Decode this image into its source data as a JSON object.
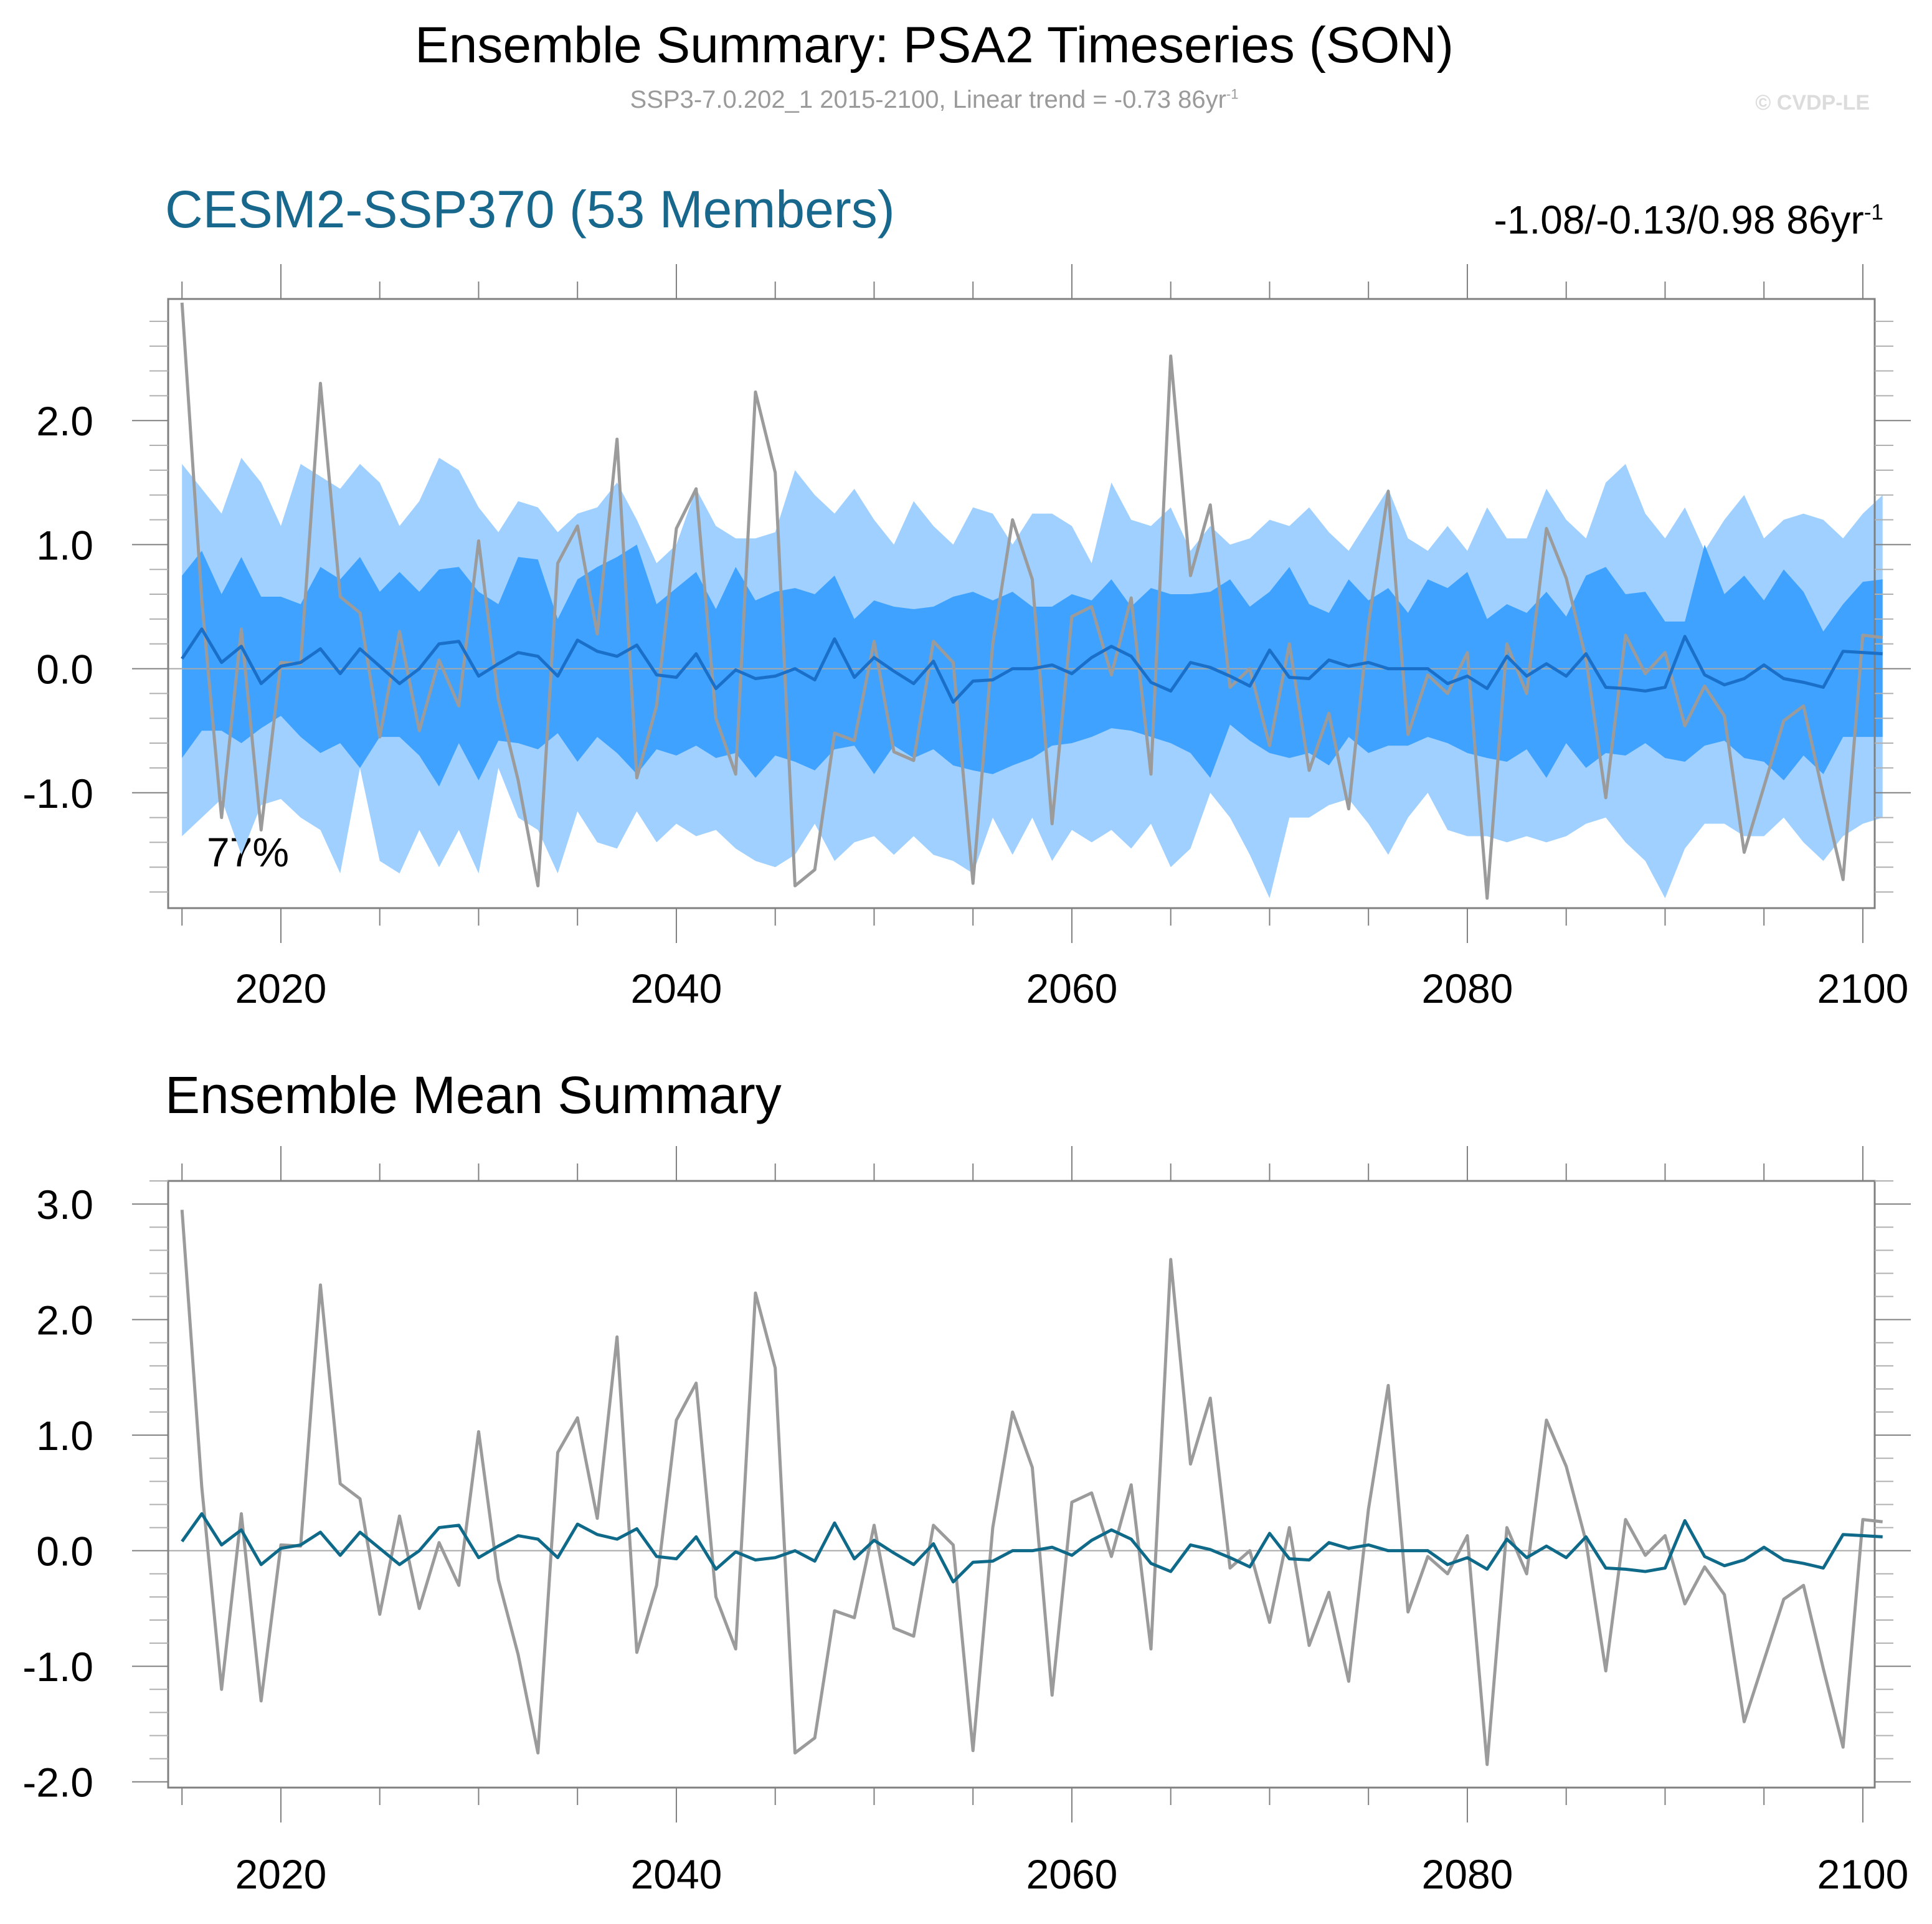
{
  "header": {
    "title": "Ensemble Summary: PSA2 Timeseries (SON)",
    "subtitle": "SSP3-7.0.202_1 2015-2100, Linear trend = -0.73 86yr",
    "subtitle_sup": "-1",
    "copyright": "© CVDP-LE"
  },
  "colors": {
    "inner_band": "#3fa2ff",
    "outer_band": "#9fd0ff",
    "ensemble_mean_top": "#1a6fc9",
    "ensemble_mean_bottom": "#0f6a8a",
    "observed": "#9b9b9b",
    "title_accent": "#17688c",
    "axis": "#808080"
  },
  "chart_data": [
    {
      "type": "area",
      "title": "CESM2-SSP370 (53 Members)",
      "trend_label": "-1.08/-0.13/0.98 86yr",
      "trend_sup": "-1",
      "annotation": "77%",
      "xlim": [
        2014.3,
        2100.6
      ],
      "ylim": [
        -1.93,
        2.98
      ],
      "x_ticks": [
        2020,
        2040,
        2060,
        2080,
        2100
      ],
      "y_ticks": [
        -1.0,
        0.0,
        1.0,
        2.0
      ],
      "y_tick_labels": [
        "-1.0",
        "0.0",
        "1.0",
        "2.0"
      ],
      "series": [
        {
          "name": "outer_band_upper",
          "values": [
            1.65,
            1.45,
            1.25,
            1.7,
            1.5,
            1.15,
            1.65,
            1.55,
            1.45,
            1.65,
            1.5,
            1.15,
            1.35,
            1.7,
            1.6,
            1.3,
            1.1,
            1.35,
            1.3,
            1.1,
            1.25,
            1.3,
            1.5,
            1.2,
            0.85,
            1.0,
            1.45,
            1.15,
            1.05,
            1.05,
            1.1,
            1.6,
            1.4,
            1.25,
            1.45,
            1.2,
            1.0,
            1.35,
            1.15,
            1.0,
            1.3,
            1.25,
            1.0,
            1.25,
            1.25,
            1.15,
            0.85,
            1.5,
            1.2,
            1.15,
            1.3,
            0.95,
            1.15,
            1.0,
            1.05,
            1.2,
            1.15,
            1.3,
            1.1,
            0.95,
            1.2,
            1.45,
            1.05,
            0.95,
            1.15,
            0.95,
            1.3,
            1.05,
            1.05,
            1.45,
            1.2,
            1.05,
            1.5,
            1.65,
            1.25,
            1.05,
            1.3,
            0.95,
            1.2,
            1.4,
            1.05,
            1.2,
            1.25,
            1.2,
            1.05,
            1.25,
            1.4
          ]
        },
        {
          "name": "inner_band_upper",
          "values": [
            0.75,
            0.95,
            0.6,
            0.9,
            0.58,
            0.58,
            0.52,
            0.82,
            0.72,
            0.9,
            0.62,
            0.78,
            0.62,
            0.8,
            0.82,
            0.62,
            0.52,
            0.9,
            0.88,
            0.4,
            0.72,
            0.82,
            0.9,
            1.0,
            0.52,
            0.65,
            0.78,
            0.48,
            0.82,
            0.55,
            0.62,
            0.65,
            0.6,
            0.75,
            0.4,
            0.55,
            0.5,
            0.48,
            0.5,
            0.58,
            0.62,
            0.55,
            0.62,
            0.5,
            0.5,
            0.6,
            0.55,
            0.72,
            0.5,
            0.65,
            0.6,
            0.6,
            0.62,
            0.72,
            0.5,
            0.62,
            0.82,
            0.52,
            0.45,
            0.72,
            0.55,
            0.65,
            0.45,
            0.72,
            0.65,
            0.78,
            0.4,
            0.52,
            0.45,
            0.62,
            0.42,
            0.75,
            0.82,
            0.6,
            0.62,
            0.38,
            0.38,
            1.0,
            0.6,
            0.75,
            0.55,
            0.8,
            0.62,
            0.3,
            0.52,
            0.7,
            0.72
          ]
        },
        {
          "name": "inner_band_lower",
          "values": [
            -0.72,
            -0.5,
            -0.5,
            -0.6,
            -0.48,
            -0.38,
            -0.55,
            -0.68,
            -0.6,
            -0.8,
            -0.55,
            -0.55,
            -0.7,
            -0.95,
            -0.6,
            -0.9,
            -0.58,
            -0.6,
            -0.65,
            -0.52,
            -0.75,
            -0.55,
            -0.68,
            -0.85,
            -0.65,
            -0.7,
            -0.62,
            -0.72,
            -0.68,
            -0.88,
            -0.7,
            -0.75,
            -0.82,
            -0.65,
            -0.62,
            -0.85,
            -0.62,
            -0.72,
            -0.65,
            -0.78,
            -0.82,
            -0.85,
            -0.78,
            -0.72,
            -0.62,
            -0.6,
            -0.55,
            -0.48,
            -0.5,
            -0.55,
            -0.6,
            -0.68,
            -0.88,
            -0.45,
            -0.58,
            -0.68,
            -0.72,
            -0.68,
            -0.78,
            -0.55,
            -0.68,
            -0.62,
            -0.62,
            -0.55,
            -0.6,
            -0.68,
            -0.72,
            -0.75,
            -0.65,
            -0.88,
            -0.6,
            -0.8,
            -0.68,
            -0.7,
            -0.6,
            -0.72,
            -0.75,
            -0.62,
            -0.58,
            -0.72,
            -0.75,
            -0.9,
            -0.7,
            -0.85,
            -0.55,
            -0.55,
            -0.55
          ]
        },
        {
          "name": "outer_band_lower",
          "values": [
            -1.35,
            -1.2,
            -1.05,
            -1.5,
            -1.1,
            -1.05,
            -1.2,
            -1.3,
            -1.65,
            -0.8,
            -1.55,
            -1.65,
            -1.3,
            -1.6,
            -1.3,
            -1.65,
            -0.8,
            -1.2,
            -1.3,
            -1.65,
            -1.15,
            -1.4,
            -1.45,
            -1.15,
            -1.4,
            -1.25,
            -1.35,
            -1.3,
            -1.45,
            -1.55,
            -1.6,
            -1.5,
            -1.25,
            -1.55,
            -1.4,
            -1.35,
            -1.5,
            -1.35,
            -1.5,
            -1.55,
            -1.65,
            -1.2,
            -1.5,
            -1.2,
            -1.55,
            -1.3,
            -1.4,
            -1.3,
            -1.45,
            -1.25,
            -1.6,
            -1.45,
            -1.0,
            -1.2,
            -1.5,
            -1.85,
            -1.2,
            -1.2,
            -1.1,
            -1.05,
            -1.25,
            -1.5,
            -1.2,
            -1.0,
            -1.3,
            -1.35,
            -1.35,
            -1.4,
            -1.35,
            -1.4,
            -1.35,
            -1.25,
            -1.2,
            -1.4,
            -1.55,
            -1.85,
            -1.45,
            -1.25,
            -1.25,
            -1.35,
            -1.35,
            -1.2,
            -1.4,
            -1.55,
            -1.35,
            -1.25,
            -1.2
          ]
        },
        {
          "name": "ensemble_mean",
          "values": [
            0.08,
            0.32,
            0.05,
            0.18,
            -0.12,
            0.02,
            0.05,
            0.16,
            -0.04,
            0.16,
            0.02,
            -0.12,
            0.0,
            0.2,
            0.22,
            -0.06,
            0.04,
            0.13,
            0.1,
            -0.06,
            0.23,
            0.14,
            0.1,
            0.19,
            -0.05,
            -0.07,
            0.12,
            -0.16,
            -0.01,
            -0.08,
            -0.06,
            0.0,
            -0.09,
            0.24,
            -0.07,
            0.09,
            -0.02,
            -0.12,
            0.06,
            -0.27,
            -0.1,
            -0.09,
            0.0,
            0.0,
            0.03,
            -0.04,
            0.09,
            0.18,
            0.1,
            -0.11,
            -0.18,
            0.05,
            0.01,
            -0.06,
            -0.14,
            0.15,
            -0.07,
            -0.08,
            0.07,
            0.02,
            0.05,
            0.0,
            0.0,
            0.0,
            -0.12,
            -0.06,
            -0.16,
            0.1,
            -0.06,
            0.04,
            -0.06,
            0.12,
            -0.15,
            -0.16,
            -0.18,
            -0.15,
            0.26,
            -0.05,
            -0.13,
            -0.08,
            0.03,
            -0.08,
            -0.11,
            -0.15,
            0.14,
            0.13,
            0.12
          ]
        },
        {
          "name": "observed",
          "values": [
            2.95,
            0.55,
            -1.2,
            0.32,
            -1.3,
            0.05,
            0.04,
            2.3,
            0.58,
            0.45,
            -0.55,
            0.3,
            -0.5,
            0.07,
            -0.3,
            1.03,
            -0.25,
            -0.9,
            -1.75,
            0.85,
            1.15,
            0.28,
            1.85,
            -0.88,
            -0.3,
            1.13,
            1.45,
            -0.4,
            -0.85,
            2.23,
            1.58,
            -1.75,
            -1.62,
            -0.52,
            -0.58,
            0.22,
            -0.67,
            -0.74,
            0.22,
            0.05,
            -1.73,
            0.2,
            1.2,
            0.72,
            -1.25,
            0.42,
            0.5,
            -0.05,
            0.57,
            -0.85,
            2.52,
            0.75,
            1.32,
            -0.15,
            0.0,
            -0.62,
            0.2,
            -0.82,
            -0.36,
            -1.13,
            0.36,
            1.43,
            -0.53,
            -0.05,
            -0.2,
            0.13,
            -1.85,
            0.2,
            -0.2,
            1.13,
            0.73,
            0.08,
            -1.04,
            0.27,
            -0.04,
            0.13,
            -0.46,
            -0.14,
            -0.38,
            -1.48,
            -0.95,
            -0.42,
            -0.3,
            -1.02,
            -1.7,
            0.27,
            0.25
          ]
        }
      ]
    },
    {
      "type": "line",
      "title": "Ensemble Mean Summary",
      "xlim": [
        2014.3,
        2100.6
      ],
      "ylim": [
        -2.05,
        3.2
      ],
      "x_ticks": [
        2020,
        2040,
        2060,
        2080,
        2100
      ],
      "y_ticks": [
        -2.0,
        -1.0,
        0.0,
        1.0,
        2.0,
        3.0
      ],
      "y_tick_labels": [
        "-2.0",
        "-1.0",
        "0.0",
        "1.0",
        "2.0",
        "3.0"
      ],
      "series": [
        {
          "name": "observed",
          "values": [
            2.95,
            0.55,
            -1.2,
            0.32,
            -1.3,
            0.05,
            0.04,
            2.3,
            0.58,
            0.45,
            -0.55,
            0.3,
            -0.5,
            0.07,
            -0.3,
            1.03,
            -0.25,
            -0.9,
            -1.75,
            0.85,
            1.15,
            0.28,
            1.85,
            -0.88,
            -0.3,
            1.13,
            1.45,
            -0.4,
            -0.85,
            2.23,
            1.58,
            -1.75,
            -1.62,
            -0.52,
            -0.58,
            0.22,
            -0.67,
            -0.74,
            0.22,
            0.05,
            -1.73,
            0.2,
            1.2,
            0.72,
            -1.25,
            0.42,
            0.5,
            -0.05,
            0.57,
            -0.85,
            2.52,
            0.75,
            1.32,
            -0.15,
            0.0,
            -0.62,
            0.2,
            -0.82,
            -0.36,
            -1.13,
            0.36,
            1.43,
            -0.53,
            -0.05,
            -0.2,
            0.13,
            -1.85,
            0.2,
            -0.2,
            1.13,
            0.73,
            0.08,
            -1.04,
            0.27,
            -0.04,
            0.13,
            -0.46,
            -0.14,
            -0.38,
            -1.48,
            -0.95,
            -0.42,
            -0.3,
            -1.02,
            -1.7,
            0.27,
            0.25
          ]
        },
        {
          "name": "ensemble_mean",
          "values": [
            0.08,
            0.32,
            0.05,
            0.18,
            -0.12,
            0.02,
            0.05,
            0.16,
            -0.04,
            0.16,
            0.02,
            -0.12,
            0.0,
            0.2,
            0.22,
            -0.06,
            0.04,
            0.13,
            0.1,
            -0.06,
            0.23,
            0.14,
            0.1,
            0.19,
            -0.05,
            -0.07,
            0.12,
            -0.16,
            -0.01,
            -0.08,
            -0.06,
            0.0,
            -0.09,
            0.24,
            -0.07,
            0.09,
            -0.02,
            -0.12,
            0.06,
            -0.27,
            -0.1,
            -0.09,
            0.0,
            0.0,
            0.03,
            -0.04,
            0.09,
            0.18,
            0.1,
            -0.11,
            -0.18,
            0.05,
            0.01,
            -0.06,
            -0.14,
            0.15,
            -0.07,
            -0.08,
            0.07,
            0.02,
            0.05,
            0.0,
            0.0,
            0.0,
            -0.12,
            -0.06,
            -0.16,
            0.1,
            -0.06,
            0.04,
            -0.06,
            0.12,
            -0.15,
            -0.16,
            -0.18,
            -0.15,
            0.26,
            -0.05,
            -0.13,
            -0.08,
            0.03,
            -0.08,
            -0.11,
            -0.15,
            0.14,
            0.13,
            0.12
          ]
        }
      ]
    }
  ],
  "years": {
    "start": 2015,
    "end": 2100
  }
}
